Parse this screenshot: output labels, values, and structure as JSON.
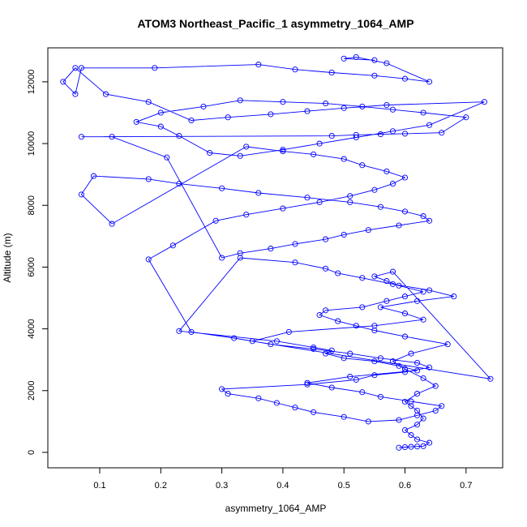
{
  "chart_data": {
    "type": "line",
    "title": "ATOM3 Northeast_Pacific_1 asymmetry_1064_AMP",
    "xlabel": "asymmetry_1064_AMP",
    "ylabel": "Altitude (m)",
    "xlim": [
      0.015,
      0.76
    ],
    "ylim": [
      -500,
      13100
    ],
    "x_ticks": [
      0.1,
      0.2,
      0.3,
      0.4,
      0.5,
      0.6,
      0.7
    ],
    "x_tick_labels": [
      "0.1",
      "0.2",
      "0.3",
      "0.4",
      "0.5",
      "0.6",
      "0.7"
    ],
    "y_ticks": [
      0,
      2000,
      4000,
      6000,
      8000,
      10000,
      12000
    ],
    "y_tick_labels": [
      "0",
      "2000",
      "4000",
      "6000",
      "8000",
      "10000",
      "12000"
    ],
    "grid": false,
    "legend": "none",
    "colors": {
      "series": "#0000ff",
      "axis": "#000000"
    },
    "marker": "open-circle",
    "series": [
      {
        "x": [
          0.59,
          0.6,
          0.61,
          0.62,
          0.63,
          0.64,
          0.62,
          0.61,
          0.6,
          0.62,
          0.63,
          0.62,
          0.61,
          0.6,
          0.62,
          0.65,
          0.63,
          0.6,
          0.58,
          0.61,
          0.67,
          0.6,
          0.55,
          0.52,
          0.49,
          0.46,
          0.47,
          0.53,
          0.57,
          0.6,
          0.63,
          0.59,
          0.57,
          0.55,
          0.58,
          0.74,
          0.35,
          0.41,
          0.55,
          0.63,
          0.6,
          0.56,
          0.62,
          0.68,
          0.64,
          0.58,
          0.53,
          0.49,
          0.47,
          0.42,
          0.33,
          0.23,
          0.39,
          0.45,
          0.48,
          0.47,
          0.5,
          0.55,
          0.59,
          0.62,
          0.51,
          0.44,
          0.48,
          0.53,
          0.56,
          0.61,
          0.66,
          0.65,
          0.62,
          0.59,
          0.54,
          0.5,
          0.45,
          0.42,
          0.39,
          0.36,
          0.31,
          0.3,
          0.44,
          0.52,
          0.55,
          0.6,
          0.64,
          0.62,
          0.56,
          0.51,
          0.45,
          0.38,
          0.32,
          0.25,
          0.18,
          0.22,
          0.29,
          0.34,
          0.4,
          0.46,
          0.51,
          0.55,
          0.58,
          0.6,
          0.57,
          0.53,
          0.5,
          0.45,
          0.4,
          0.34,
          0.12,
          0.07,
          0.09,
          0.18,
          0.23,
          0.3,
          0.36,
          0.44,
          0.51,
          0.56,
          0.6,
          0.63,
          0.64,
          0.59,
          0.54,
          0.5,
          0.47,
          0.42,
          0.38,
          0.33,
          0.3,
          0.21,
          0.12,
          0.07,
          0.48,
          0.52,
          0.56,
          0.6,
          0.66,
          0.7,
          0.63,
          0.58,
          0.53,
          0.47,
          0.4,
          0.33,
          0.27,
          0.2,
          0.16,
          0.2,
          0.23,
          0.28,
          0.33,
          0.4,
          0.46,
          0.52,
          0.58,
          0.64,
          0.73,
          0.57,
          0.5,
          0.44,
          0.38,
          0.31,
          0.25,
          0.18,
          0.11,
          0.06,
          0.04,
          0.06,
          0.07,
          0.19,
          0.36,
          0.42,
          0.48,
          0.55,
          0.6,
          0.64,
          0.57,
          0.52,
          0.5,
          0.55
        ],
        "y": [
          150,
          170,
          180,
          190,
          200,
          310,
          420,
          560,
          720,
          900,
          1100,
          1350,
          1500,
          1640,
          1900,
          2150,
          2400,
          2700,
          2950,
          3200,
          3500,
          3750,
          3950,
          4100,
          4250,
          4450,
          4600,
          4700,
          4900,
          5050,
          5200,
          5400,
          5550,
          5700,
          5850,
          2380,
          3600,
          3900,
          4100,
          4300,
          4500,
          4700,
          4900,
          5050,
          5250,
          5450,
          5650,
          5800,
          5950,
          6150,
          6300,
          3930,
          3600,
          3400,
          3300,
          3200,
          3050,
          2950,
          2800,
          2650,
          2450,
          2250,
          2100,
          1950,
          1800,
          1650,
          1500,
          1350,
          1200,
          1050,
          1000,
          1150,
          1300,
          1450,
          1600,
          1750,
          1900,
          2050,
          2200,
          2350,
          2500,
          2600,
          2750,
          2900,
          3050,
          3200,
          3350,
          3500,
          3700,
          3900,
          6250,
          6700,
          7500,
          7700,
          7900,
          8100,
          8300,
          8500,
          8700,
          8900,
          9100,
          9300,
          9500,
          9650,
          9750,
          9900,
          7400,
          8350,
          8950,
          8850,
          8700,
          8550,
          8400,
          8250,
          8100,
          7950,
          7800,
          7650,
          7500,
          7350,
          7200,
          7050,
          6900,
          6750,
          6600,
          6450,
          6300,
          9550,
          10220,
          10220,
          10250,
          10280,
          10300,
          10320,
          10350,
          10850,
          11000,
          11100,
          11200,
          11300,
          11350,
          11400,
          11200,
          11000,
          10700,
          10550,
          10250,
          9700,
          9600,
          9800,
          10000,
          10200,
          10400,
          10600,
          11350,
          11250,
          11150,
          11050,
          10950,
          10850,
          10750,
          11350,
          11600,
          12450,
          12000,
          11600,
          12450,
          12450,
          12560,
          12400,
          12300,
          12200,
          12100,
          12000,
          12600,
          12800,
          12750,
          12700
        ]
      }
    ]
  }
}
